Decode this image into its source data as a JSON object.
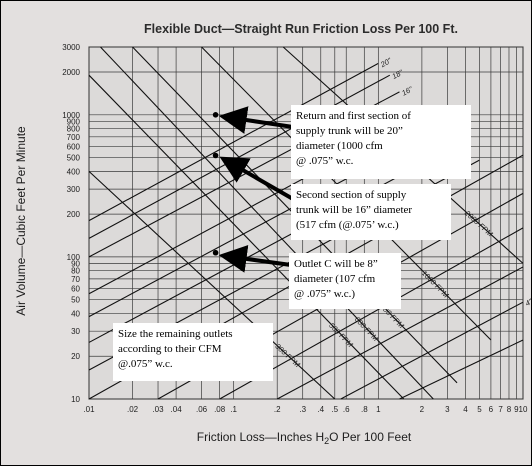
{
  "chart_data": {
    "type": "scatter",
    "title": "Flexible Duct—Straight Run Friction Loss Per 100 Ft.",
    "xlabel_parts": [
      "Friction Loss—Inches H",
      "2",
      "O Per 100 Feet"
    ],
    "ylabel": "Air Volume—Cubic Feet Per Minute",
    "x_scale": "log",
    "y_scale": "log",
    "xlim": [
      0.01,
      10
    ],
    "ylim": [
      10,
      3000
    ],
    "x_ticks": [
      {
        "v": 0.01,
        "t": ".01"
      },
      {
        "v": 0.02,
        "t": ".02"
      },
      {
        "v": 0.03,
        "t": ".03"
      },
      {
        "v": 0.04,
        "t": ".04"
      },
      {
        "v": 0.06,
        "t": ".06"
      },
      {
        "v": 0.08,
        "t": ".08"
      },
      {
        "v": 0.1,
        "t": ".1"
      },
      {
        "v": 0.2,
        "t": ".2"
      },
      {
        "v": 0.3,
        "t": ".3"
      },
      {
        "v": 0.4,
        "t": ".4"
      },
      {
        "v": 0.5,
        "t": ".5"
      },
      {
        "v": 0.6,
        "t": ".6"
      },
      {
        "v": 0.8,
        "t": ".8"
      },
      {
        "v": 1,
        "t": "1"
      },
      {
        "v": 2,
        "t": "2"
      },
      {
        "v": 3,
        "t": "3"
      },
      {
        "v": 4,
        "t": "4"
      },
      {
        "v": 5,
        "t": "5"
      },
      {
        "v": 6,
        "t": "6"
      },
      {
        "v": 7,
        "t": "7"
      },
      {
        "v": 8,
        "t": "8"
      },
      {
        "v": 9,
        "t": "9"
      },
      {
        "v": 10,
        "t": "10"
      }
    ],
    "y_ticks": [
      {
        "v": 3000,
        "t": "3000"
      },
      {
        "v": 2000,
        "t": "2000"
      },
      {
        "v": 1000,
        "t": "1000"
      },
      {
        "v": 900,
        "t": "900"
      },
      {
        "v": 800,
        "t": "800"
      },
      {
        "v": 700,
        "t": "700"
      },
      {
        "v": 600,
        "t": "600"
      },
      {
        "v": 500,
        "t": "500"
      },
      {
        "v": 400,
        "t": "400"
      },
      {
        "v": 300,
        "t": "300"
      },
      {
        "v": 200,
        "t": "200"
      },
      {
        "v": 100,
        "t": "100"
      },
      {
        "v": 90,
        "t": "90"
      },
      {
        "v": 80,
        "t": "80"
      },
      {
        "v": 70,
        "t": "70"
      },
      {
        "v": 60,
        "t": "60"
      },
      {
        "v": 50,
        "t": "50"
      },
      {
        "v": 40,
        "t": "40"
      },
      {
        "v": 30,
        "t": "30"
      },
      {
        "v": 20,
        "t": "20"
      },
      {
        "v": 10,
        "t": "10"
      }
    ],
    "gridlines": true,
    "diameter_lines": [
      {
        "label": "20\"",
        "points": [
          [
            0.01,
            180
          ],
          [
            1.0,
            2300
          ]
        ]
      },
      {
        "label": "18\"",
        "points": [
          [
            0.01,
            135
          ],
          [
            1.2,
            1900
          ]
        ]
      },
      {
        "label": "16\"",
        "points": [
          [
            0.01,
            100
          ],
          [
            1.4,
            1450
          ]
        ]
      },
      {
        "label": "",
        "points": [
          [
            0.01,
            55
          ],
          [
            2.2,
            1050
          ]
        ]
      },
      {
        "label": "",
        "points": [
          [
            0.01,
            38
          ],
          [
            2.8,
            820
          ]
        ]
      },
      {
        "label": "",
        "points": [
          [
            0.01,
            25
          ],
          [
            3.8,
            640
          ]
        ]
      },
      {
        "label": "",
        "points": [
          [
            0.01,
            16
          ],
          [
            5.0,
            480
          ]
        ]
      },
      {
        "label": "",
        "points": [
          [
            0.01,
            10
          ],
          [
            10,
            520
          ]
        ]
      },
      {
        "label": "",
        "points": [
          [
            0.03,
            10
          ],
          [
            10,
            280
          ]
        ]
      },
      {
        "label": "",
        "points": [
          [
            0.08,
            10
          ],
          [
            10,
            160
          ]
        ]
      },
      {
        "label": "",
        "points": [
          [
            0.2,
            10
          ],
          [
            10,
            85
          ]
        ]
      },
      {
        "label": "4\"",
        "points": [
          [
            0.55,
            10
          ],
          [
            10,
            48
          ]
        ]
      },
      {
        "label": "",
        "points": [
          [
            1.4,
            10
          ],
          [
            10,
            26
          ]
        ]
      }
    ],
    "velocity_lines": [
      {
        "label": "2000 FPM",
        "points": [
          [
            0.22,
            3000
          ],
          [
            10,
            90
          ]
        ]
      },
      {
        "label": "1000 FPM",
        "points": [
          [
            0.06,
            3000
          ],
          [
            6,
            26
          ]
        ]
      },
      {
        "label": "700 FPM",
        "points": [
          [
            0.02,
            3000
          ],
          [
            3.5,
            13
          ]
        ]
      },
      {
        "label": "600 FPM",
        "points": [
          [
            0.012,
            3000
          ],
          [
            2.4,
            10
          ]
        ]
      },
      {
        "label": "500 FPM",
        "points": [
          [
            0.01,
            1900
          ],
          [
            1.5,
            10
          ]
        ]
      },
      {
        "label": "300 FPM",
        "points": [
          [
            0.01,
            400
          ],
          [
            0.5,
            10
          ]
        ]
      }
    ],
    "series": [
      {
        "points": [
          [
            0.075,
            1000
          ],
          [
            0.075,
            517
          ],
          [
            0.075,
            107
          ]
        ]
      }
    ],
    "annotations": [
      {
        "lines": [
          "Return and first section of",
          "supply trunk will be 20”",
          "diameter (1000 cfm",
          "@ .075” w.c."
        ],
        "target": [
          0.08,
          1000
        ]
      },
      {
        "lines": [
          "Second section of supply",
          "trunk will be 16” diameter",
          "(517 cfm (@.075’ w.c.)"
        ],
        "target": [
          0.08,
          500
        ]
      },
      {
        "lines": [
          "Outlet C will be 8”",
          "diameter (107 cfm",
          "@ .075” w.c.)"
        ],
        "target": [
          0.08,
          105
        ]
      },
      {
        "lines": [
          "Size the remaining outlets",
          "according to their CFM",
          "@.075” w.c."
        ],
        "target": null
      }
    ]
  }
}
